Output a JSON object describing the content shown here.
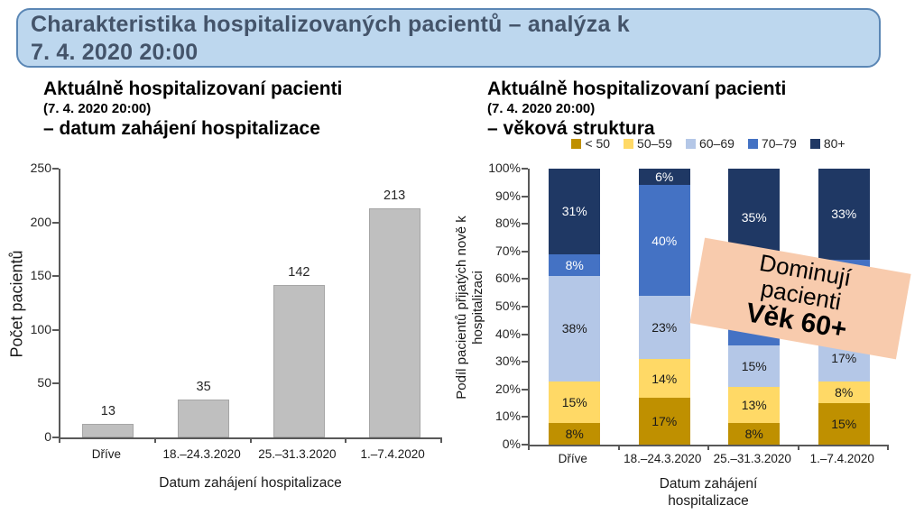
{
  "banner": {
    "line1": "Charakteristika hospitalizovaných pacientů – analýza k",
    "line2": "7. 4. 2020 20:00",
    "bg": "#BDD7EE",
    "border": "#5B87B5",
    "text_color": "#44546A"
  },
  "annotation": {
    "line1": "Dominují",
    "line2": "pacienti",
    "line3": "Věk 60+",
    "bg": "#F8CBAD"
  },
  "chart_data": [
    {
      "type": "bar",
      "title": "Aktuálně hospitalizovaní pacienti",
      "subtitle": "(7. 4. 2020 20:00)",
      "subtitle2": "– datum zahájení hospitalizace",
      "categories": [
        "Dříve",
        "18.–24.3.2020",
        "25.–31.3.2020",
        "1.–7.4.2020"
      ],
      "values": [
        13,
        35,
        142,
        213
      ],
      "value_labels": [
        "13",
        "35",
        "142",
        "213"
      ],
      "ylabel": "Počet pacientů",
      "xlabel": "Datum zahájení hospitalizace",
      "ylim": [
        0,
        250
      ],
      "yticks": [
        "0",
        "50",
        "100",
        "150",
        "200",
        "250"
      ],
      "bar_color": "#BFBFBF",
      "bar_border": "#A6A6A6",
      "grid": false,
      "legend_position": "none"
    },
    {
      "type": "stacked-bar-100",
      "title": "Aktuálně hospitalizovaní pacienti",
      "subtitle": "(7. 4. 2020 20:00)",
      "subtitle2": "– věková struktura",
      "categories": [
        "Dříve",
        "18.–24.3.2020",
        "25.–31.3.2020",
        "1.–7.4.2020"
      ],
      "series": [
        {
          "name": "< 50",
          "color": "#BF9000",
          "label_color": "#1a1a1a",
          "values": [
            8,
            17,
            8,
            15
          ],
          "labels": [
            "8%",
            "17%",
            "8%",
            "15%"
          ]
        },
        {
          "name": "50–59",
          "color": "#FFD966",
          "label_color": "#1a1a1a",
          "values": [
            15,
            14,
            13,
            8
          ],
          "labels": [
            "15%",
            "14%",
            "13%",
            "8%"
          ]
        },
        {
          "name": "60–69",
          "color": "#B4C7E7",
          "label_color": "#1a1a1a",
          "values": [
            38,
            23,
            15,
            17
          ],
          "labels": [
            "38%",
            "23%",
            "15%",
            "17%"
          ]
        },
        {
          "name": "70–79",
          "color": "#4472C4",
          "label_color": "#ffffff",
          "values": [
            8,
            40,
            29,
            27
          ],
          "labels": [
            "8%",
            "40%",
            "",
            ""
          ]
        },
        {
          "name": "80+",
          "color": "#1F3864",
          "label_color": "#ffffff",
          "values": [
            31,
            6,
            35,
            33
          ],
          "labels": [
            "31%",
            "6%",
            "35%",
            "33%"
          ]
        }
      ],
      "ylabel": "Podíl pacientů přijatých nově k hospitalizaci",
      "ylabel_lines": [
        "Podíl pacientů přijatých nově k",
        "hospitalizaci"
      ],
      "xlabel_lines": [
        "Datum zahájení",
        "hospitalizace"
      ],
      "ylim": [
        0,
        100
      ],
      "yticks": [
        "0%",
        "10%",
        "20%",
        "30%",
        "40%",
        "50%",
        "60%",
        "70%",
        "80%",
        "90%",
        "100%"
      ],
      "grid": false,
      "legend_position": "top"
    }
  ]
}
